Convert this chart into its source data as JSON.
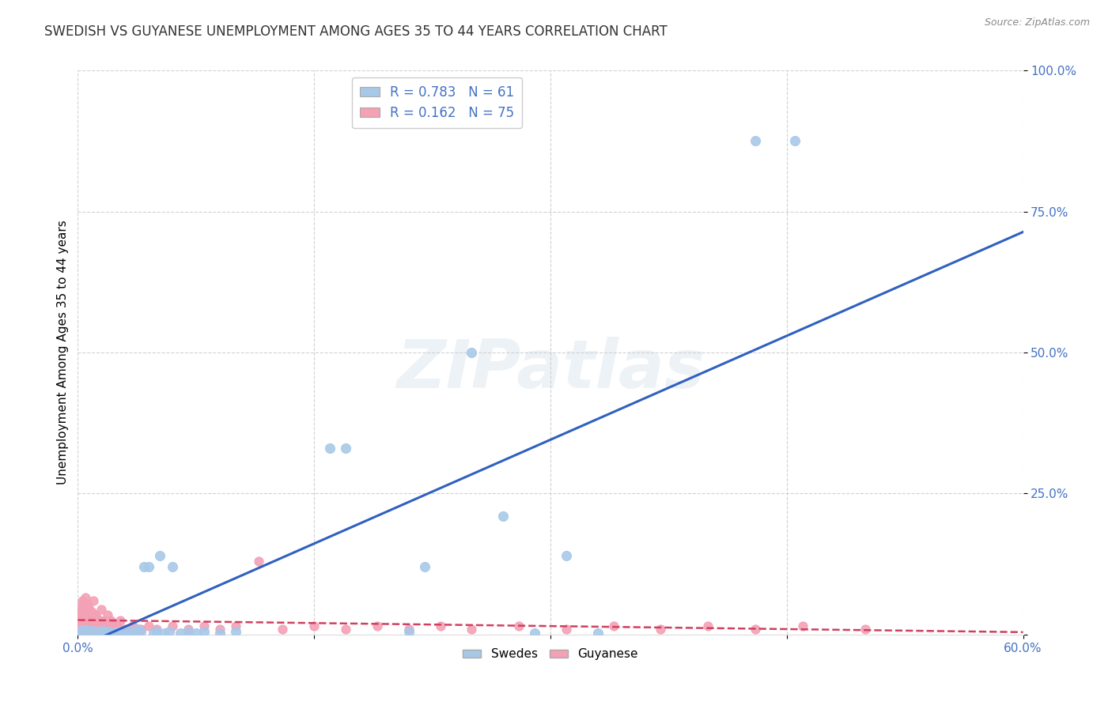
{
  "title": "SWEDISH VS GUYANESE UNEMPLOYMENT AMONG AGES 35 TO 44 YEARS CORRELATION CHART",
  "source": "Source: ZipAtlas.com",
  "ylabel": "Unemployment Among Ages 35 to 44 years",
  "xlim": [
    0.0,
    0.6
  ],
  "ylim": [
    0.0,
    1.0
  ],
  "xticks": [
    0.0,
    0.15,
    0.3,
    0.45,
    0.6
  ],
  "yticks": [
    0.0,
    0.25,
    0.5,
    0.75,
    1.0
  ],
  "xtick_labels": [
    "0.0%",
    "",
    "",
    "",
    "60.0%"
  ],
  "ytick_labels": [
    "",
    "25.0%",
    "50.0%",
    "75.0%",
    "100.0%"
  ],
  "swedish_R": 0.783,
  "swedish_N": 61,
  "guyanese_R": 0.162,
  "guyanese_N": 75,
  "swede_color": "#a8c8e8",
  "guyanese_color": "#f4a0b5",
  "swede_line_color": "#3060c0",
  "guyanese_line_color": "#d04060",
  "background_color": "#ffffff",
  "grid_color": "#cccccc",
  "title_color": "#333333",
  "axis_label_color": "#4472c4",
  "legend_r_color": "#4472c4",
  "watermark": "ZIPatlas",
  "swedes_x": [
    0.001,
    0.002,
    0.002,
    0.003,
    0.003,
    0.004,
    0.004,
    0.005,
    0.005,
    0.006,
    0.006,
    0.007,
    0.007,
    0.008,
    0.008,
    0.009,
    0.01,
    0.01,
    0.011,
    0.012,
    0.013,
    0.014,
    0.015,
    0.016,
    0.017,
    0.018,
    0.019,
    0.02,
    0.022,
    0.025,
    0.027,
    0.03,
    0.033,
    0.035,
    0.038,
    0.04,
    0.042,
    0.045,
    0.048,
    0.05,
    0.052,
    0.055,
    0.058,
    0.06,
    0.065,
    0.07,
    0.075,
    0.08,
    0.09,
    0.1,
    0.16,
    0.17,
    0.21,
    0.22,
    0.25,
    0.27,
    0.29,
    0.31,
    0.33,
    0.43,
    0.455
  ],
  "swedes_y": [
    0.005,
    0.003,
    0.007,
    0.005,
    0.008,
    0.004,
    0.006,
    0.003,
    0.007,
    0.004,
    0.008,
    0.005,
    0.003,
    0.006,
    0.004,
    0.007,
    0.003,
    0.006,
    0.004,
    0.005,
    0.003,
    0.006,
    0.004,
    0.007,
    0.003,
    0.005,
    0.004,
    0.006,
    0.003,
    0.005,
    0.004,
    0.003,
    0.005,
    0.004,
    0.01,
    0.005,
    0.12,
    0.12,
    0.003,
    0.005,
    0.14,
    0.003,
    0.005,
    0.12,
    0.003,
    0.005,
    0.003,
    0.005,
    0.003,
    0.005,
    0.33,
    0.33,
    0.005,
    0.12,
    0.5,
    0.21,
    0.003,
    0.14,
    0.003,
    0.875,
    0.875
  ],
  "guyanese_x": [
    0.0,
    0.0,
    0.001,
    0.001,
    0.001,
    0.002,
    0.002,
    0.002,
    0.003,
    0.003,
    0.003,
    0.003,
    0.004,
    0.004,
    0.004,
    0.005,
    0.005,
    0.005,
    0.005,
    0.006,
    0.006,
    0.006,
    0.007,
    0.007,
    0.007,
    0.008,
    0.008,
    0.009,
    0.009,
    0.01,
    0.01,
    0.011,
    0.011,
    0.012,
    0.012,
    0.013,
    0.014,
    0.015,
    0.015,
    0.016,
    0.017,
    0.018,
    0.019,
    0.02,
    0.021,
    0.022,
    0.023,
    0.025,
    0.027,
    0.03,
    0.035,
    0.04,
    0.045,
    0.05,
    0.06,
    0.07,
    0.08,
    0.09,
    0.1,
    0.115,
    0.13,
    0.15,
    0.17,
    0.19,
    0.21,
    0.23,
    0.25,
    0.28,
    0.31,
    0.34,
    0.37,
    0.4,
    0.43,
    0.46,
    0.5
  ],
  "guyanese_y": [
    0.01,
    0.03,
    0.008,
    0.02,
    0.04,
    0.012,
    0.025,
    0.05,
    0.01,
    0.025,
    0.04,
    0.06,
    0.015,
    0.03,
    0.055,
    0.008,
    0.02,
    0.04,
    0.065,
    0.012,
    0.03,
    0.055,
    0.01,
    0.025,
    0.048,
    0.015,
    0.035,
    0.01,
    0.04,
    0.008,
    0.06,
    0.015,
    0.035,
    0.01,
    0.03,
    0.015,
    0.025,
    0.008,
    0.045,
    0.015,
    0.025,
    0.01,
    0.035,
    0.012,
    0.025,
    0.01,
    0.02,
    0.015,
    0.025,
    0.01,
    0.015,
    0.01,
    0.015,
    0.01,
    0.015,
    0.01,
    0.015,
    0.01,
    0.015,
    0.13,
    0.01,
    0.015,
    0.01,
    0.015,
    0.01,
    0.015,
    0.01,
    0.015,
    0.01,
    0.015,
    0.01,
    0.015,
    0.01,
    0.015,
    0.01
  ]
}
